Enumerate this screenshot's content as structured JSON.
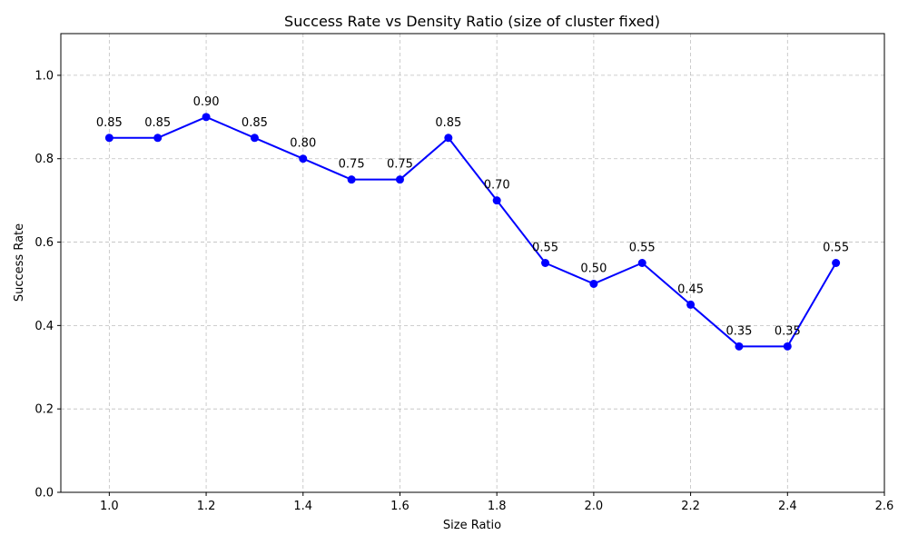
{
  "chart_data": {
    "type": "line",
    "title": "Success Rate vs Density Ratio (size of cluster fixed)",
    "xlabel": "Size Ratio",
    "ylabel": "Success Rate",
    "xlim": [
      0.9,
      2.6
    ],
    "ylim": [
      0.0,
      1.1
    ],
    "xticks": [
      1.0,
      1.2,
      1.4,
      1.6,
      1.8,
      2.0,
      2.2,
      2.4,
      2.6
    ],
    "xtick_labels": [
      "1.0",
      "1.2",
      "1.4",
      "1.6",
      "1.8",
      "2.0",
      "2.2",
      "2.4",
      "2.6"
    ],
    "yticks": [
      0.0,
      0.2,
      0.4,
      0.6,
      0.8,
      1.0
    ],
    "ytick_labels": [
      "0.0",
      "0.2",
      "0.4",
      "0.6",
      "0.8",
      "1.0"
    ],
    "grid": true,
    "line_color": "#0000ff",
    "series": [
      {
        "x": [
          1.0,
          1.1,
          1.2,
          1.3,
          1.4,
          1.5,
          1.6,
          1.7,
          1.8,
          1.9,
          2.0,
          2.1,
          2.2,
          2.3,
          2.4,
          2.5
        ],
        "values": [
          0.85,
          0.85,
          0.9,
          0.85,
          0.8,
          0.75,
          0.75,
          0.85,
          0.7,
          0.55,
          0.5,
          0.55,
          0.45,
          0.35,
          0.35,
          0.55
        ],
        "labels": [
          "0.85",
          "0.85",
          "0.90",
          "0.85",
          "0.80",
          "0.75",
          "0.75",
          "0.85",
          "0.70",
          "0.55",
          "0.50",
          "0.55",
          "0.45",
          "0.35",
          "0.35",
          "0.55"
        ]
      }
    ]
  }
}
